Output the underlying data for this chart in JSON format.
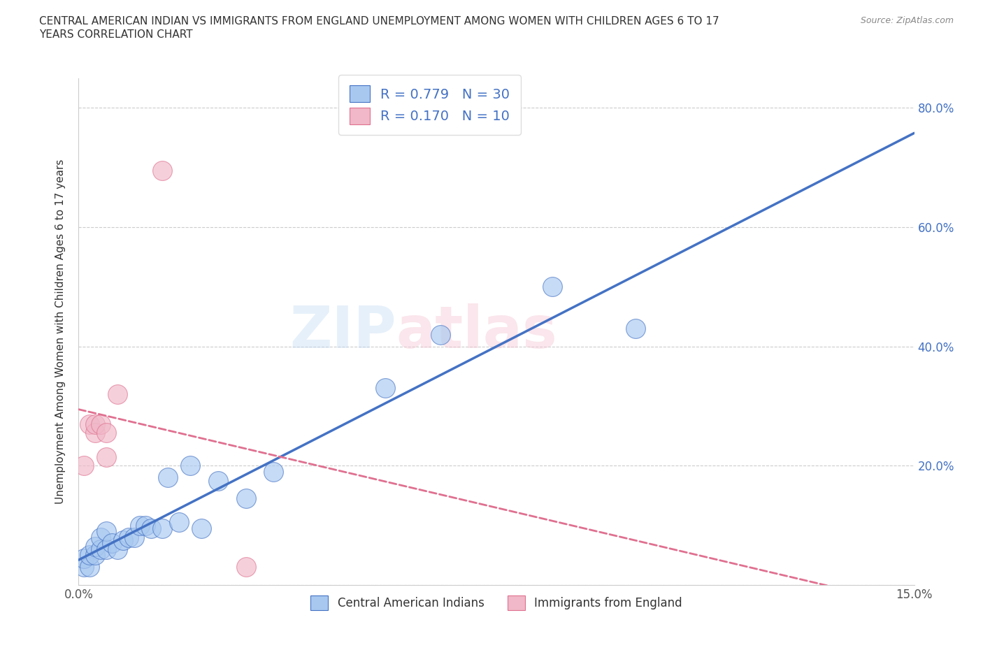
{
  "title": "CENTRAL AMERICAN INDIAN VS IMMIGRANTS FROM ENGLAND UNEMPLOYMENT AMONG WOMEN WITH CHILDREN AGES 6 TO 17\nYEARS CORRELATION CHART",
  "source": "Source: ZipAtlas.com",
  "ylabel": "Unemployment Among Women with Children Ages 6 to 17 years",
  "xlim": [
    0.0,
    0.15
  ],
  "ylim": [
    0.0,
    0.85
  ],
  "blue_x": [
    0.001,
    0.001,
    0.002,
    0.002,
    0.003,
    0.003,
    0.004,
    0.004,
    0.005,
    0.005,
    0.006,
    0.007,
    0.008,
    0.009,
    0.01,
    0.011,
    0.012,
    0.013,
    0.015,
    0.016,
    0.018,
    0.02,
    0.022,
    0.025,
    0.03,
    0.035,
    0.055,
    0.065,
    0.085,
    0.1
  ],
  "blue_y": [
    0.03,
    0.045,
    0.03,
    0.05,
    0.05,
    0.065,
    0.06,
    0.08,
    0.06,
    0.09,
    0.07,
    0.06,
    0.075,
    0.08,
    0.08,
    0.1,
    0.1,
    0.095,
    0.095,
    0.18,
    0.105,
    0.2,
    0.095,
    0.175,
    0.145,
    0.19,
    0.33,
    0.42,
    0.5,
    0.43
  ],
  "pink_x": [
    0.001,
    0.002,
    0.003,
    0.003,
    0.004,
    0.005,
    0.005,
    0.007,
    0.03,
    0.015
  ],
  "pink_y": [
    0.2,
    0.27,
    0.255,
    0.27,
    0.27,
    0.215,
    0.255,
    0.32,
    0.03,
    0.695
  ],
  "blue_color": "#a8c8f0",
  "blue_line_color": "#4472c4",
  "pink_color": "#f0b8c8",
  "pink_line_color": "#e07090",
  "grid_color": "#cccccc",
  "background_color": "#ffffff",
  "blue_R": 0.779,
  "blue_N": 30,
  "pink_R": 0.17,
  "pink_N": 10
}
